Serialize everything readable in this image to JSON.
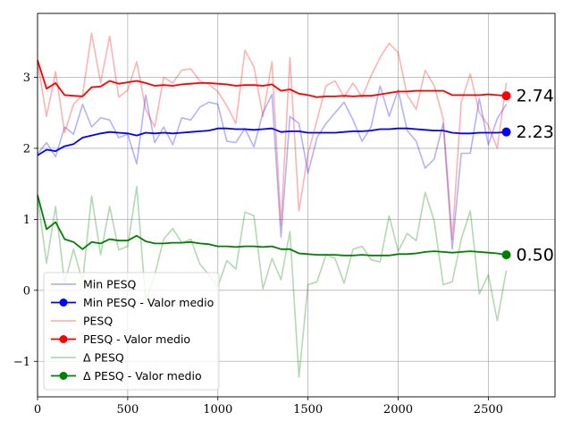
{
  "chart_data": {
    "type": "line",
    "title": "",
    "xlabel": "",
    "ylabel": "",
    "xlim": [
      0,
      2870
    ],
    "ylim": [
      -1.5,
      3.9
    ],
    "grid": true,
    "legend_position": "lower-left",
    "x_ticks": [
      "0",
      "500",
      "1000",
      "1500",
      "2000",
      "2500"
    ],
    "y_ticks": [
      "−1",
      "0",
      "1",
      "2",
      "3"
    ],
    "x": [
      0,
      50,
      100,
      150,
      200,
      250,
      300,
      350,
      400,
      450,
      500,
      550,
      600,
      650,
      700,
      750,
      800,
      850,
      900,
      950,
      1000,
      1050,
      1100,
      1150,
      1200,
      1250,
      1300,
      1350,
      1400,
      1450,
      1500,
      1550,
      1600,
      1650,
      1700,
      1750,
      1800,
      1850,
      1900,
      1950,
      2000,
      2050,
      2100,
      2150,
      2200,
      2250,
      2300,
      2350,
      2400,
      2450,
      2500,
      2550,
      2600
    ],
    "series": [
      {
        "name": "Min PESQ",
        "color": "#0000ff",
        "opacity": 0.3,
        "values": [
          1.92,
          2.08,
          1.88,
          2.3,
          2.2,
          2.62,
          2.3,
          2.43,
          2.4,
          2.15,
          2.2,
          1.78,
          2.75,
          2.08,
          2.3,
          2.05,
          2.43,
          2.4,
          2.58,
          2.65,
          2.62,
          2.1,
          2.08,
          2.28,
          2.02,
          2.5,
          2.76,
          0.75,
          2.45,
          2.35,
          1.65,
          2.15,
          2.35,
          2.5,
          2.65,
          2.4,
          2.1,
          2.3,
          2.88,
          2.45,
          2.82,
          2.25,
          2.1,
          1.72,
          1.85,
          2.35,
          0.58,
          1.93,
          1.93,
          2.7,
          2.05,
          2.42,
          2.62
        ]
      },
      {
        "name": "Min PESQ - Valor medio",
        "color": "#0000ff",
        "values": [
          1.9,
          1.98,
          1.96,
          2.03,
          2.06,
          2.15,
          2.18,
          2.21,
          2.23,
          2.22,
          2.21,
          2.18,
          2.22,
          2.21,
          2.22,
          2.21,
          2.22,
          2.23,
          2.24,
          2.25,
          2.28,
          2.28,
          2.27,
          2.27,
          2.26,
          2.27,
          2.28,
          2.23,
          2.24,
          2.24,
          2.22,
          2.22,
          2.22,
          2.22,
          2.23,
          2.24,
          2.24,
          2.25,
          2.27,
          2.27,
          2.28,
          2.28,
          2.27,
          2.26,
          2.25,
          2.25,
          2.22,
          2.21,
          2.21,
          2.22,
          2.22,
          2.22,
          2.23
        ]
      },
      {
        "name": "PESQ",
        "color": "#ff0000",
        "opacity": 0.3,
        "values": [
          3.22,
          2.45,
          3.08,
          2.22,
          2.62,
          2.75,
          3.62,
          2.92,
          3.58,
          2.72,
          2.82,
          3.22,
          2.55,
          2.3,
          3.0,
          2.92,
          3.1,
          3.12,
          2.95,
          2.9,
          2.8,
          2.6,
          2.35,
          3.38,
          3.15,
          2.45,
          3.22,
          0.92,
          3.28,
          1.12,
          1.92,
          2.4,
          2.88,
          2.95,
          2.72,
          2.92,
          2.72,
          3.02,
          3.28,
          3.48,
          3.35,
          2.75,
          2.55,
          3.1,
          2.88,
          2.42,
          0.72,
          2.65,
          3.05,
          2.5,
          2.32,
          2.0,
          2.92
        ]
      },
      {
        "name": "PESQ - Valor medio",
        "color": "#ff0000",
        "values": [
          3.24,
          2.84,
          2.92,
          2.75,
          2.74,
          2.73,
          2.86,
          2.87,
          2.95,
          2.91,
          2.93,
          2.95,
          2.92,
          2.88,
          2.89,
          2.88,
          2.9,
          2.91,
          2.92,
          2.92,
          2.91,
          2.9,
          2.88,
          2.89,
          2.89,
          2.88,
          2.9,
          2.81,
          2.83,
          2.77,
          2.75,
          2.72,
          2.73,
          2.73,
          2.74,
          2.73,
          2.74,
          2.74,
          2.76,
          2.78,
          2.8,
          2.8,
          2.81,
          2.81,
          2.81,
          2.81,
          2.75,
          2.75,
          2.75,
          2.75,
          2.76,
          2.75,
          2.74
        ]
      },
      {
        "name": "Δ PESQ",
        "color": "#008000",
        "opacity": 0.3,
        "values": [
          1.32,
          0.38,
          1.18,
          0.1,
          0.58,
          0.12,
          1.33,
          0.5,
          1.18,
          0.57,
          0.62,
          1.46,
          -0.15,
          0.22,
          0.72,
          0.87,
          0.67,
          0.72,
          0.37,
          0.22,
          0.05,
          0.42,
          0.3,
          1.1,
          1.05,
          0.02,
          0.45,
          0.15,
          0.83,
          -1.22,
          0.08,
          0.12,
          0.5,
          0.45,
          0.1,
          0.58,
          0.62,
          0.43,
          0.4,
          1.05,
          0.55,
          0.8,
          0.7,
          1.38,
          0.98,
          0.08,
          0.12,
          0.72,
          1.12,
          -0.05,
          0.22,
          -0.43,
          0.28
        ]
      },
      {
        "name": "Δ PESQ - Valor medio",
        "color": "#008000",
        "values": [
          1.34,
          0.86,
          0.96,
          0.72,
          0.68,
          0.58,
          0.68,
          0.66,
          0.72,
          0.7,
          0.7,
          0.77,
          0.69,
          0.66,
          0.66,
          0.67,
          0.67,
          0.68,
          0.66,
          0.65,
          0.62,
          0.62,
          0.61,
          0.62,
          0.62,
          0.61,
          0.62,
          0.58,
          0.58,
          0.52,
          0.51,
          0.5,
          0.5,
          0.5,
          0.49,
          0.49,
          0.5,
          0.49,
          0.49,
          0.49,
          0.51,
          0.51,
          0.52,
          0.54,
          0.55,
          0.54,
          0.53,
          0.54,
          0.55,
          0.54,
          0.53,
          0.52,
          0.5
        ]
      }
    ],
    "end_labels": [
      {
        "series": "PESQ - Valor medio",
        "text": "2.74",
        "value": 2.74,
        "color": "#ff0000"
      },
      {
        "series": "Min PESQ - Valor medio",
        "text": "2.23",
        "value": 2.23,
        "color": "#0000ff"
      },
      {
        "series": "Δ PESQ - Valor medio",
        "text": "0.50",
        "value": 0.5,
        "color": "#008000"
      }
    ],
    "legend": [
      {
        "label": "Min PESQ",
        "series_index": 0,
        "marker": false
      },
      {
        "label": "Min PESQ - Valor medio",
        "series_index": 1,
        "marker": true
      },
      {
        "label": "PESQ",
        "series_index": 2,
        "marker": false
      },
      {
        "label": "PESQ - Valor medio",
        "series_index": 3,
        "marker": true
      },
      {
        "label": "Δ PESQ",
        "series_index": 4,
        "marker": false
      },
      {
        "label": "Δ PESQ - Valor medio",
        "series_index": 5,
        "marker": true
      }
    ]
  }
}
